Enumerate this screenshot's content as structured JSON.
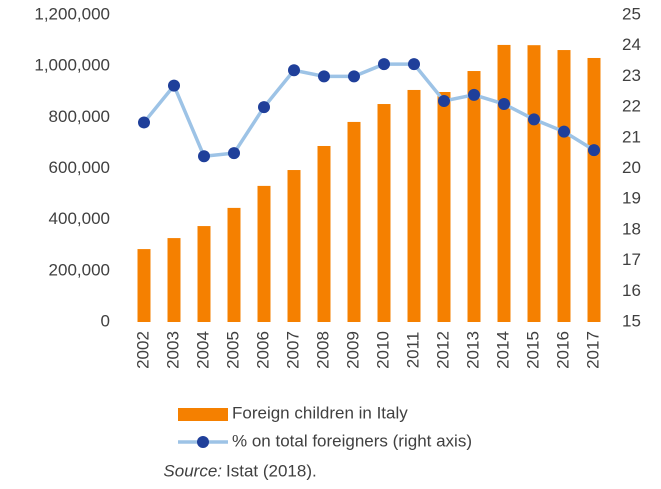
{
  "chart_data": {
    "type": "bar_line",
    "categories": [
      "2002",
      "2003",
      "2004",
      "2005",
      "2006",
      "2007",
      "2008",
      "2009",
      "2010",
      "2011",
      "2012",
      "2013",
      "2014",
      "2015",
      "2016",
      "2017"
    ],
    "series": [
      {
        "name": "Foreign children in Italy",
        "color": "#f58000",
        "type": "bar",
        "values": [
          285000,
          328000,
          375000,
          446000,
          532000,
          594000,
          688000,
          782000,
          852000,
          907000,
          899000,
          981000,
          1083000,
          1082000,
          1063000,
          1032000
        ]
      },
      {
        "name": "% on total foreigners (right axis)",
        "color": "#9dc3e6",
        "marker_color": "#1f3f9a",
        "type": "line",
        "axis": "y2",
        "values": [
          21.5,
          22.7,
          20.4,
          20.5,
          22.0,
          23.2,
          23.0,
          23.0,
          23.4,
          23.4,
          22.2,
          22.4,
          22.1,
          21.6,
          21.2,
          20.6
        ]
      }
    ],
    "ylim": [
      0,
      1200000
    ],
    "yticks": [
      0,
      {
        "value": 200000,
        "label": "200,000"
      },
      {
        "value": 400000,
        "label": "400,000"
      },
      {
        "value": 600000,
        "label": "600,000"
      },
      {
        "value": 800000,
        "label": "800,000"
      },
      {
        "value": 1000000,
        "label": "1,000,000"
      },
      {
        "value": 1200000,
        "label": "1,200,000"
      }
    ],
    "y2lim": [
      15,
      25
    ],
    "y2ticks": [
      15,
      16,
      17,
      18,
      19,
      20,
      21,
      22,
      23,
      24,
      25
    ],
    "grid": false,
    "legend": "bottom",
    "source_label": "Source:",
    "source_text": "Istat (2018)."
  }
}
